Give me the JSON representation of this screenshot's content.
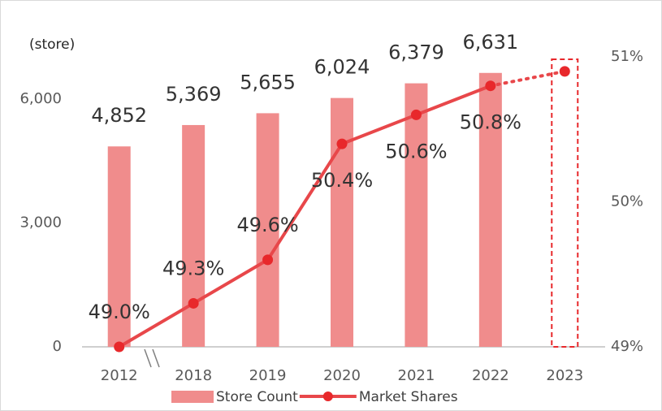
{
  "chart_data": {
    "type": "bar-line",
    "y_axis_label": "(store)",
    "categories": [
      "2012",
      "2018",
      "2019",
      "2020",
      "2021",
      "2022",
      "2023"
    ],
    "series": [
      {
        "name": "Store Count",
        "type": "bar",
        "color": "#f08c8c",
        "values": [
          4852,
          5369,
          5655,
          6024,
          6379,
          6631,
          null
        ],
        "value_labels": [
          "4,852",
          "5,369",
          "5,655",
          "6,024",
          "6,379",
          "6,631",
          null
        ]
      },
      {
        "name": "Market Shares",
        "type": "line",
        "axis": "y2",
        "color": "#e8474a",
        "values": [
          49.0,
          49.3,
          49.6,
          50.4,
          50.6,
          50.8,
          50.9
        ],
        "value_labels": [
          "49.0%",
          "49.3%",
          "49.6%",
          "50.4%",
          "50.6%",
          "50.8%",
          null
        ],
        "projected_from": 5
      }
    ],
    "ylim": [
      0,
      7000
    ],
    "yticks": [
      0,
      {
        "value": 3000,
        "label": "3,000"
      },
      {
        "value": 6000,
        "label": "6,000"
      }
    ],
    "y2lim": [
      49,
      51
    ],
    "y2ticks": [
      {
        "value": 49,
        "label": "49%"
      },
      {
        "value": 50,
        "label": "50%"
      },
      {
        "value": 51,
        "label": "51%"
      }
    ]
  }
}
